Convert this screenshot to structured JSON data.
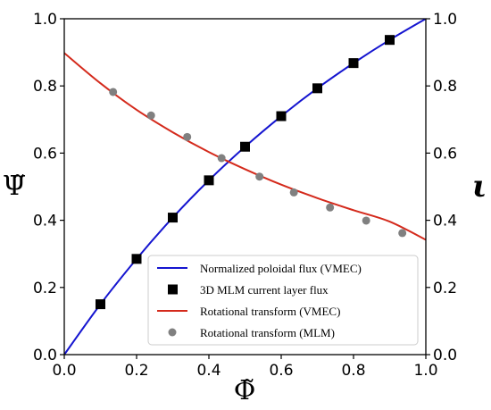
{
  "chart_data": {
    "type": "line",
    "xlabel": "Φ̃",
    "ylabel": "Ψ̃",
    "ylabel_right": "ι",
    "xlim": [
      0,
      1
    ],
    "ylim": [
      0,
      1
    ],
    "ylim_right": [
      0,
      1
    ],
    "x_ticks": [
      "0.0",
      "0.2",
      "0.4",
      "0.6",
      "0.8",
      "1.0"
    ],
    "y_ticks": [
      "0.0",
      "0.2",
      "0.4",
      "0.6",
      "0.8",
      "1.0"
    ],
    "y_ticks_right": [
      "0.0",
      "0.2",
      "0.4",
      "0.6",
      "0.8",
      "1.0"
    ],
    "grid": false,
    "legend_position": "lower-right",
    "series": [
      {
        "name": "Normalized poloidal flux (VMEC)",
        "kind": "line",
        "axis": "left",
        "color": "#1515d0",
        "x": [
          0.0,
          0.1,
          0.2,
          0.3,
          0.4,
          0.5,
          0.6,
          0.7,
          0.8,
          0.9,
          1.0
        ],
        "y": [
          0.0,
          0.15,
          0.285,
          0.408,
          0.519,
          0.619,
          0.71,
          0.793,
          0.868,
          0.937,
          1.0
        ]
      },
      {
        "name": "3D MLM current layer flux",
        "kind": "square-marker",
        "axis": "left",
        "color": "#000000",
        "x": [
          0.1,
          0.2,
          0.3,
          0.4,
          0.5,
          0.6,
          0.7,
          0.8,
          0.9
        ],
        "y": [
          0.15,
          0.285,
          0.408,
          0.519,
          0.619,
          0.71,
          0.793,
          0.868,
          0.937
        ]
      },
      {
        "name": "Rotational transform (VMEC)",
        "kind": "line",
        "axis": "right",
        "color": "#d42a1c",
        "x": [
          0.0,
          0.1,
          0.2,
          0.3,
          0.4,
          0.5,
          0.6,
          0.7,
          0.8,
          0.9,
          1.0
        ],
        "y": [
          0.898,
          0.808,
          0.729,
          0.662,
          0.603,
          0.552,
          0.506,
          0.466,
          0.43,
          0.396,
          0.342
        ]
      },
      {
        "name": "Rotational transform (MLM)",
        "kind": "circle-marker",
        "axis": "right",
        "color": "#808080",
        "x": [
          0.135,
          0.24,
          0.34,
          0.435,
          0.54,
          0.635,
          0.735,
          0.835,
          0.935
        ],
        "y": [
          0.782,
          0.712,
          0.648,
          0.585,
          0.53,
          0.483,
          0.438,
          0.399,
          0.362
        ]
      }
    ]
  }
}
